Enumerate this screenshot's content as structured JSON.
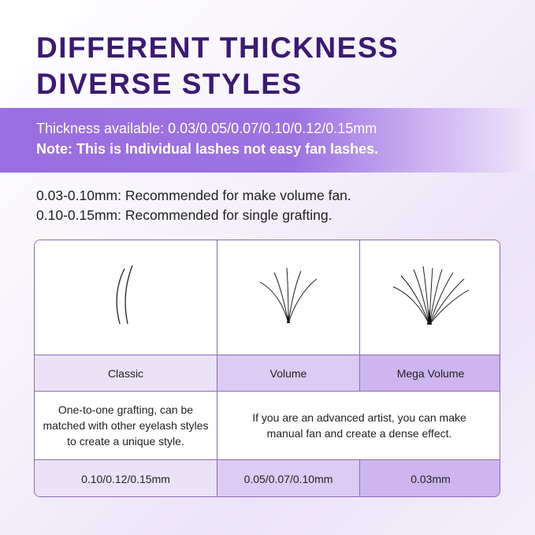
{
  "title": {
    "line1": "DIFFERENT THICKNESS",
    "line2": "DIVERSE STYLES"
  },
  "band": {
    "thickness": "Thickness available: 0.03/0.05/0.07/0.10/0.12/0.15mm",
    "note": "Note: This is Individual lashes not easy fan lashes."
  },
  "recommendations": [
    "0.03-0.10mm: Recommended for make volume fan.",
    "0.10-0.15mm: Recommended for single grafting."
  ],
  "table": {
    "styles": [
      "Classic",
      "Volume",
      "Mega Volume"
    ],
    "descriptions": {
      "classic": "One-to-one grafting, can be matched with other eyelash styles to create a unique style.",
      "volume": "If you are an advanced artist, you can make manual fan and create a dense effect."
    },
    "sizes": [
      "0.10/0.12/0.15mm",
      "0.05/0.07/0.10mm",
      "0.03mm"
    ]
  },
  "colors": {
    "title": "#3b1a73",
    "band": "#9a6ee0",
    "border": "#8a6cb8"
  }
}
